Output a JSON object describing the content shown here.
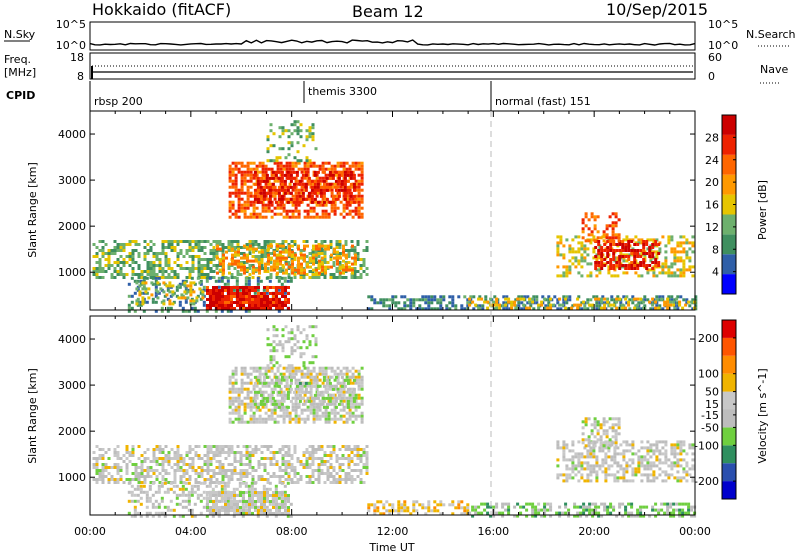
{
  "header": {
    "station": "Hokkaido (fitACF)",
    "beam": "Beam 12",
    "date": "10/Sep/2015"
  },
  "top_panels": {
    "nsky_label": "N.Sky",
    "nsky_ticks": [
      "10^5",
      "10^0"
    ],
    "nsky_right_ticks": [
      "10^5",
      "10^0"
    ],
    "nsearch_label": "N.Search",
    "freq_label_1": "Freq.",
    "freq_label_2": "[MHz]",
    "freq_ticks": [
      "18",
      "8"
    ],
    "nave_ticks": [
      "60",
      "0"
    ],
    "nave_label": "Nave",
    "cpid_label": "CPID",
    "cpid_modes": [
      {
        "label": "rbsp 200",
        "start_hour": 0
      },
      {
        "label": "themis 3300",
        "start_hour": 8.5
      },
      {
        "label": "normal (fast) 151",
        "start_hour": 16
      }
    ]
  },
  "colors": {
    "power_scale": [
      "#0000ff",
      "#2f5fa8",
      "#3f8f5f",
      "#6db06d",
      "#e6c500",
      "#ff9900",
      "#ff6600",
      "#ee2200",
      "#cc0000"
    ],
    "velocity_scale": [
      "#0000cc",
      "#2a4fae",
      "#2f8f5f",
      "#6fcf3f",
      "#bdbdbd",
      "#c8c8c8",
      "#f0b400",
      "#ff8c00",
      "#ff5500",
      "#dd0000"
    ],
    "dash": "#bbbbbb"
  },
  "chart_data": [
    {
      "type": "heatmap",
      "title": "Power",
      "xlabel": "Time UT",
      "ylabel": "Slant Range [km]",
      "x_ticks": [
        "00:00",
        "04:00",
        "08:00",
        "12:00",
        "16:00",
        "20:00",
        "00:00"
      ],
      "x_range_hours": [
        0,
        24
      ],
      "y_ticks": [
        1000,
        2000,
        3000,
        4000
      ],
      "ylim": [
        180,
        4500
      ],
      "colorbar": {
        "label": "Power [dB]",
        "ticks": [
          4,
          8,
          12,
          16,
          20,
          24,
          28
        ],
        "range": [
          0,
          32
        ]
      },
      "regions": [
        {
          "t0": 0.1,
          "t1": 11.0,
          "r0": 900,
          "r1": 1700,
          "value": 12,
          "density": 0.55
        },
        {
          "t0": 1.5,
          "t1": 8.0,
          "r0": 180,
          "r1": 900,
          "value": 8,
          "density": 0.35
        },
        {
          "t0": 4.6,
          "t1": 7.9,
          "r0": 180,
          "r1": 700,
          "value": 28,
          "density": 0.85
        },
        {
          "t0": 1.8,
          "t1": 4.5,
          "r0": 300,
          "r1": 800,
          "value": 16,
          "density": 0.35
        },
        {
          "t0": 5.0,
          "t1": 10.5,
          "r0": 1000,
          "r1": 1600,
          "value": 20,
          "density": 0.45
        },
        {
          "t0": 5.5,
          "t1": 10.8,
          "r0": 2200,
          "r1": 3400,
          "value": 24,
          "density": 0.65
        },
        {
          "t0": 6.5,
          "t1": 10.5,
          "r0": 2500,
          "r1": 3200,
          "value": 28,
          "density": 0.55
        },
        {
          "t0": 7.0,
          "t1": 9.0,
          "r0": 3400,
          "r1": 4300,
          "value": 12,
          "density": 0.3
        },
        {
          "t0": 11.0,
          "t1": 24.0,
          "r0": 180,
          "r1": 500,
          "value": 8,
          "density": 0.5
        },
        {
          "t0": 15.0,
          "t1": 24.0,
          "r0": 200,
          "r1": 450,
          "value": 16,
          "density": 0.45
        },
        {
          "t0": 18.5,
          "t1": 23.9,
          "r0": 900,
          "r1": 1800,
          "value": 16,
          "density": 0.45
        },
        {
          "t0": 20.0,
          "t1": 22.5,
          "r0": 1100,
          "r1": 1700,
          "value": 28,
          "density": 0.6
        },
        {
          "t0": 19.5,
          "t1": 21.0,
          "r0": 1700,
          "r1": 2300,
          "value": 24,
          "density": 0.45
        }
      ]
    },
    {
      "type": "heatmap",
      "title": "Velocity",
      "xlabel": "Time UT",
      "ylabel": "Slant Range [km]",
      "x_ticks": [
        "00:00",
        "04:00",
        "08:00",
        "12:00",
        "16:00",
        "20:00",
        "00:00"
      ],
      "x_range_hours": [
        0,
        24
      ],
      "y_ticks": [
        1000,
        2000,
        3000,
        4000
      ],
      "ylim": [
        180,
        4500
      ],
      "colorbar": {
        "label": "Velocity [m s^-1]",
        "ticks": [
          200,
          100,
          50,
          15,
          -15,
          -50,
          -100,
          -200
        ],
        "range": [
          -250,
          250
        ]
      },
      "regions": [
        {
          "t0": 0.1,
          "t1": 11.0,
          "r0": 900,
          "r1": 1700,
          "value": 0,
          "density": 0.55
        },
        {
          "t0": 1.5,
          "t1": 8.0,
          "r0": 180,
          "r1": 900,
          "value": 0,
          "density": 0.4
        },
        {
          "t0": 4.6,
          "t1": 7.9,
          "r0": 180,
          "r1": 700,
          "value": 0,
          "density": 0.8
        },
        {
          "t0": 5.5,
          "t1": 10.8,
          "r0": 2200,
          "r1": 3400,
          "value": 0,
          "density": 0.65
        },
        {
          "t0": 6.5,
          "t1": 10.5,
          "r0": 2500,
          "r1": 3200,
          "value": -40,
          "density": 0.35
        },
        {
          "t0": 7.0,
          "t1": 9.0,
          "r0": 3400,
          "r1": 4300,
          "value": -30,
          "density": 0.3
        },
        {
          "t0": 11.0,
          "t1": 15.0,
          "r0": 180,
          "r1": 500,
          "value": 60,
          "density": 0.5
        },
        {
          "t0": 15.0,
          "t1": 24.0,
          "r0": 180,
          "r1": 450,
          "value": -60,
          "density": 0.5
        },
        {
          "t0": 18.5,
          "t1": 23.9,
          "r0": 900,
          "r1": 1800,
          "value": 0,
          "density": 0.5
        },
        {
          "t0": 19.5,
          "t1": 21.0,
          "r0": 1700,
          "r1": 2300,
          "value": 0,
          "density": 0.45
        }
      ]
    }
  ]
}
